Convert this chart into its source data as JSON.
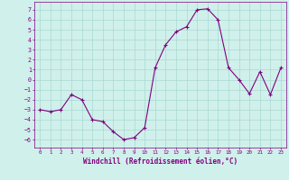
{
  "x": [
    0,
    1,
    2,
    3,
    4,
    5,
    6,
    7,
    8,
    9,
    10,
    11,
    12,
    13,
    14,
    15,
    16,
    17,
    18,
    19,
    20,
    21,
    22,
    23
  ],
  "y": [
    -3.0,
    -3.2,
    -3.0,
    -1.5,
    -2.0,
    -4.0,
    -4.2,
    -5.2,
    -6.0,
    -5.8,
    -4.8,
    1.2,
    3.5,
    4.8,
    5.3,
    7.0,
    7.1,
    6.0,
    1.2,
    0.0,
    -1.4,
    0.8,
    -1.5,
    1.2
  ],
  "line_color": "#800080",
  "marker": "+",
  "bg_color": "#d0f0eb",
  "grid_color": "#a8d8d0",
  "xlabel": "Windchill (Refroidissement éolien,°C)",
  "yticks": [
    7,
    6,
    5,
    4,
    3,
    2,
    1,
    0,
    -1,
    -2,
    -3,
    -4,
    -5,
    -6
  ],
  "xticks": [
    0,
    1,
    2,
    3,
    4,
    5,
    6,
    7,
    8,
    9,
    10,
    11,
    12,
    13,
    14,
    15,
    16,
    17,
    18,
    19,
    20,
    21,
    22,
    23
  ],
  "ylim": [
    -6.8,
    7.8
  ],
  "xlim": [
    -0.5,
    23.5
  ],
  "line_width": 0.8,
  "marker_size": 2.5,
  "axis_color": "#800080",
  "tick_color": "#800080",
  "xlabel_fontsize": 5.5,
  "tick_fontsize_x": 4.2,
  "tick_fontsize_y": 4.8
}
